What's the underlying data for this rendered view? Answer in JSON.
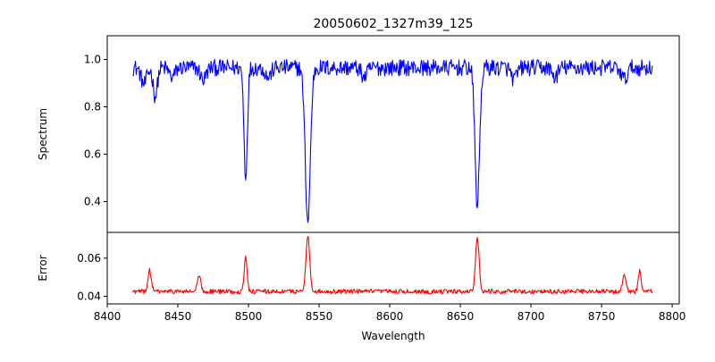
{
  "chart_data": {
    "type": "line",
    "title": "20050602_1327m39_125",
    "xlabel": "Wavelength",
    "xlim": [
      8400,
      8805
    ],
    "xticks": [
      8400,
      8450,
      8500,
      8550,
      8600,
      8650,
      8700,
      8750,
      8800
    ],
    "panels": [
      {
        "id": "spectrum",
        "ylabel": "Spectrum",
        "ylim": [
          0.27,
          1.1
        ],
        "yticks": [
          0.4,
          0.6,
          0.8,
          1.0
        ],
        "ytick_labels": [
          "0.4",
          "0.6",
          "0.8",
          "1.0"
        ],
        "series": [
          {
            "color": "#0000ff",
            "baseline": 0.965,
            "noise": 0.035,
            "x_range": [
              8418,
              8786
            ],
            "features": [
              {
                "x": 8426,
                "depth": 0.07,
                "width": 2.0
              },
              {
                "x": 8434,
                "depth": 0.12,
                "width": 1.5
              },
              {
                "x": 8446,
                "depth": 0.04,
                "width": 2.0
              },
              {
                "x": 8468,
                "depth": 0.05,
                "width": 2.0
              },
              {
                "x": 8498,
                "depth": 0.46,
                "width": 1.2
              },
              {
                "x": 8514,
                "depth": 0.04,
                "width": 2.0
              },
              {
                "x": 8542,
                "depth": 0.65,
                "width": 1.8
              },
              {
                "x": 8582,
                "depth": 0.04,
                "width": 2.0
              },
              {
                "x": 8662,
                "depth": 0.58,
                "width": 1.6
              },
              {
                "x": 8688,
                "depth": 0.05,
                "width": 2.0
              },
              {
                "x": 8717,
                "depth": 0.04,
                "width": 2.0
              },
              {
                "x": 8766,
                "depth": 0.05,
                "width": 2.0
              }
            ]
          }
        ]
      },
      {
        "id": "error",
        "ylabel": "Error",
        "ylim": [
          0.036,
          0.0735
        ],
        "yticks": [
          0.04,
          0.06
        ],
        "ytick_labels": [
          "0.04",
          "0.06"
        ],
        "series": [
          {
            "color": "#ff0000",
            "baseline": 0.0425,
            "noise": 0.0012,
            "x_range": [
              8418,
              8786
            ],
            "features": [
              {
                "x": 8430,
                "depth": -0.011,
                "width": 1.2
              },
              {
                "x": 8465,
                "depth": -0.008,
                "width": 1.2
              },
              {
                "x": 8498,
                "depth": -0.019,
                "width": 1.0
              },
              {
                "x": 8542,
                "depth": -0.03,
                "width": 1.3
              },
              {
                "x": 8662,
                "depth": -0.028,
                "width": 1.3
              },
              {
                "x": 8766,
                "depth": -0.008,
                "width": 1.2
              },
              {
                "x": 8777,
                "depth": -0.011,
                "width": 1.0
              }
            ]
          }
        ]
      }
    ]
  }
}
